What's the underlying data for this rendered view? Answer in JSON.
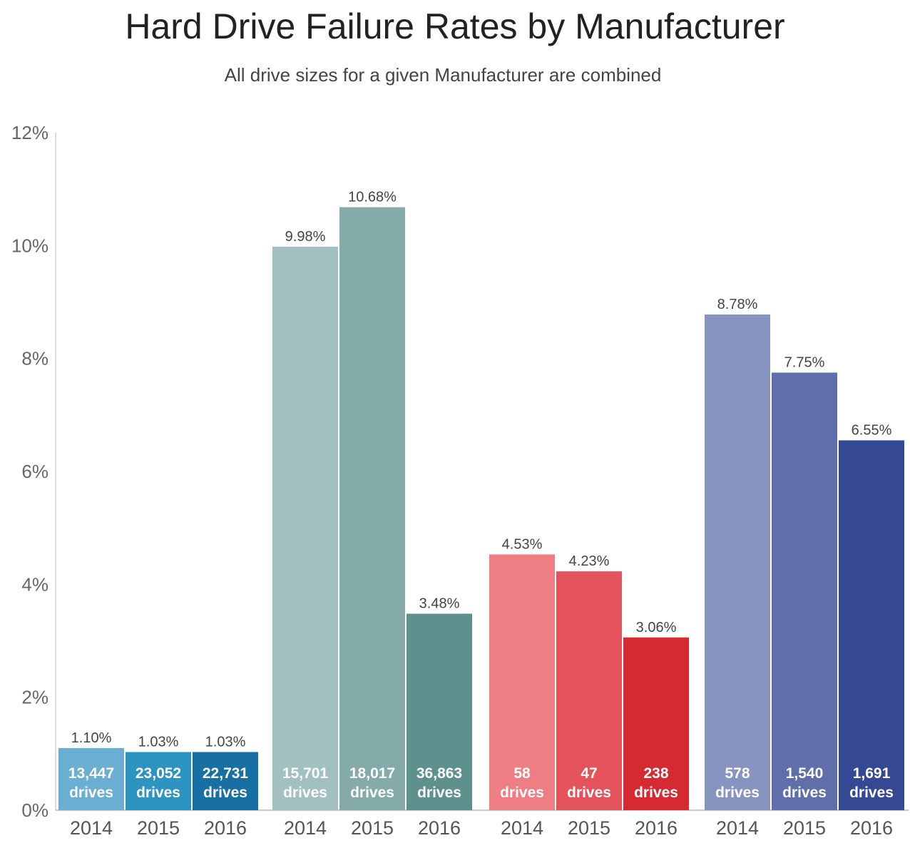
{
  "chart_data": {
    "type": "bar",
    "title": "Hard Drive Failure Rates by Manufacturer",
    "subtitle": "All drive sizes for a given Manufacturer are combined",
    "ylim": [
      0,
      12
    ],
    "yticks": [
      "0%",
      "2%",
      "4%",
      "6%",
      "8%",
      "10%",
      "12%"
    ],
    "grid": false,
    "groups": [
      {
        "colors": [
          "#6aaed1",
          "#2d93c1",
          "#176fa4"
        ],
        "bars": [
          {
            "year": "2014",
            "value": 1.1,
            "label": "1.10%",
            "count": "13,447",
            "unit": "drives"
          },
          {
            "year": "2015",
            "value": 1.03,
            "label": "1.03%",
            "count": "23,052",
            "unit": "drives"
          },
          {
            "year": "2016",
            "value": 1.03,
            "label": "1.03%",
            "count": "22,731",
            "unit": "drives"
          }
        ]
      },
      {
        "colors": [
          "#a3c0c0",
          "#84aaa9",
          "#5e918d"
        ],
        "bars": [
          {
            "year": "2014",
            "value": 9.98,
            "label": "9.98%",
            "count": "15,701",
            "unit": "drives"
          },
          {
            "year": "2015",
            "value": 10.68,
            "label": "10.68%",
            "count": "18,017",
            "unit": "drives"
          },
          {
            "year": "2016",
            "value": 3.48,
            "label": "3.48%",
            "count": "36,863",
            "unit": "drives"
          }
        ]
      },
      {
        "colors": [
          "#ef7d84",
          "#e4525c",
          "#d62a33"
        ],
        "bars": [
          {
            "year": "2014",
            "value": 4.53,
            "label": "4.53%",
            "count": "58",
            "unit": "drives"
          },
          {
            "year": "2015",
            "value": 4.23,
            "label": "4.23%",
            "count": "47",
            "unit": "drives"
          },
          {
            "year": "2016",
            "value": 3.06,
            "label": "3.06%",
            "count": "238",
            "unit": "drives"
          }
        ]
      },
      {
        "colors": [
          "#8894c0",
          "#606fa9",
          "#344893"
        ],
        "bars": [
          {
            "year": "2014",
            "value": 8.78,
            "label": "8.78%",
            "count": "578",
            "unit": "drives"
          },
          {
            "year": "2015",
            "value": 7.75,
            "label": "7.75%",
            "count": "1,540",
            "unit": "drives"
          },
          {
            "year": "2016",
            "value": 6.55,
            "label": "6.55%",
            "count": "1,691",
            "unit": "drives"
          }
        ]
      }
    ]
  }
}
